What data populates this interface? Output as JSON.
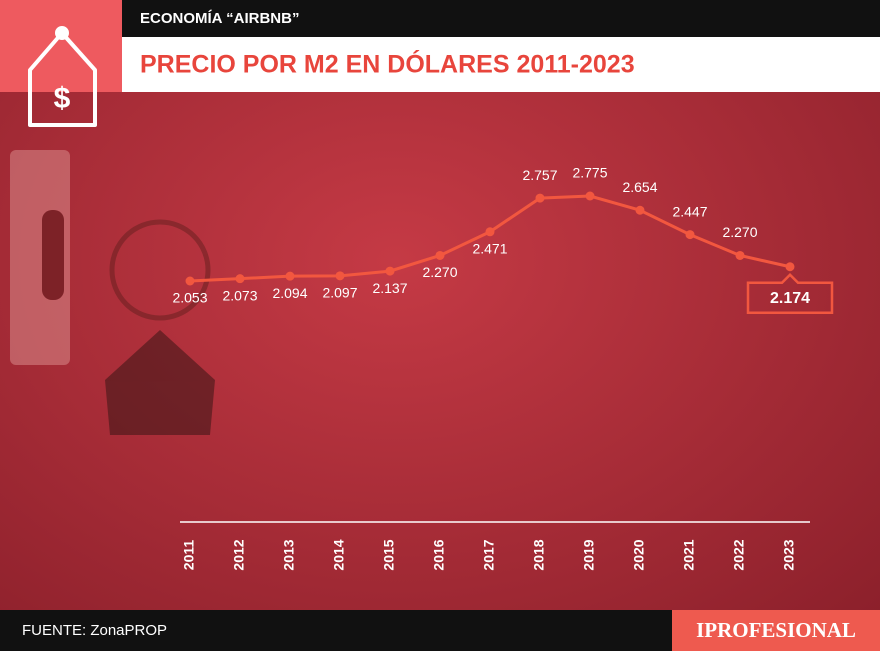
{
  "header": {
    "section": "ECONOMÍA “AIRBNB”",
    "title": "PRECIO POR M2 EN DÓLARES 2011-2023"
  },
  "chart_data": {
    "type": "line",
    "categories": [
      "2011",
      "2012",
      "2013",
      "2014",
      "2015",
      "2016",
      "2017",
      "2018",
      "2019",
      "2020",
      "2021",
      "2022",
      "2023"
    ],
    "values": [
      2053,
      2073,
      2094,
      2097,
      2137,
      2270,
      2471,
      2757,
      2775,
      2654,
      2447,
      2270,
      2174
    ],
    "value_labels": [
      "2.053",
      "2.073",
      "2.094",
      "2.097",
      "2.137",
      "2.270",
      "2.471",
      "2.757",
      "2.775",
      "2.654",
      "2.447",
      "2.270",
      "2.174"
    ],
    "color": "#f2573f"
  },
  "footer": {
    "source": "FUENTE: ZonaPROP",
    "brand": "IPROFESIONAL"
  }
}
